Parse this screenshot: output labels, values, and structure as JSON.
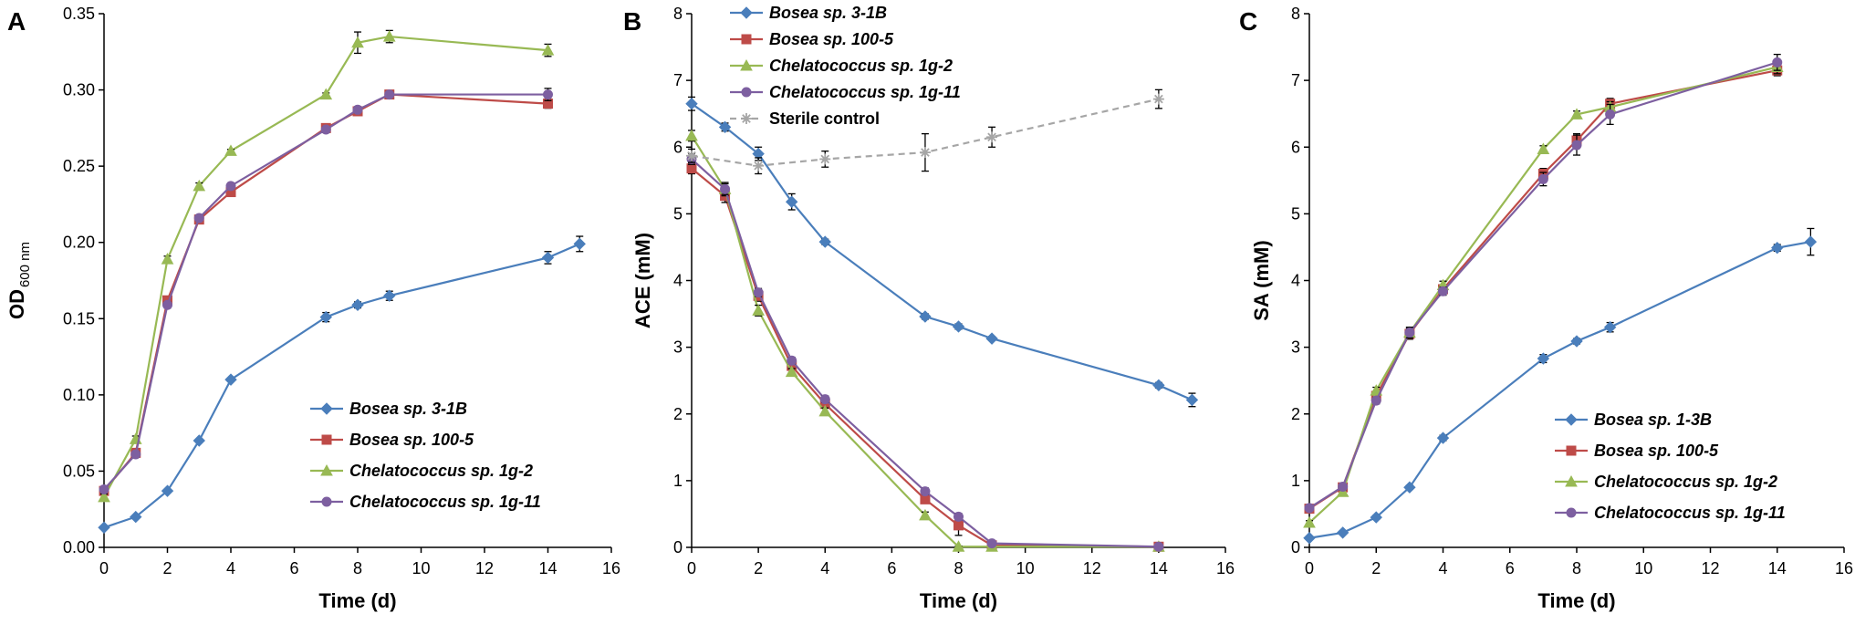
{
  "chart_data": [
    {
      "type": "line",
      "panel_label": "A",
      "ylabel_main": "OD",
      "ylabel_sub": "600 nm",
      "xlabel": "Time (d)",
      "xlim": [
        0,
        16
      ],
      "ylim": [
        0,
        0.35
      ],
      "xticks": [
        "0",
        "2",
        "4",
        "6",
        "8",
        "10",
        "12",
        "14",
        "16"
      ],
      "yticks": [
        "0.00",
        "0.05",
        "0.10",
        "0.15",
        "0.20",
        "0.25",
        "0.30",
        "0.35"
      ],
      "legend_position": "bottom-right",
      "series": [
        {
          "name": "Bosea sp. 3-1B",
          "color": "#4a7ebb",
          "marker": "diamond",
          "dashed": false,
          "x": [
            0,
            1,
            2,
            3,
            4,
            7,
            8,
            9,
            14,
            15
          ],
          "y": [
            0.013,
            0.02,
            0.037,
            0.07,
            0.11,
            0.151,
            0.159,
            0.165,
            0.19,
            0.199
          ],
          "err": [
            0.001,
            0.001,
            0.001,
            0.001,
            0.001,
            0.003,
            0.002,
            0.003,
            0.004,
            0.005
          ]
        },
        {
          "name": "Bosea sp. 100-5",
          "color": "#be4b48",
          "marker": "square",
          "dashed": false,
          "x": [
            0,
            1,
            2,
            3,
            4,
            7,
            8,
            9,
            14
          ],
          "y": [
            0.037,
            0.062,
            0.162,
            0.215,
            0.233,
            0.275,
            0.286,
            0.297,
            0.291
          ],
          "err": [
            0.002,
            0.002,
            0.002,
            0.002,
            0.002,
            0.002,
            0.002,
            0.002,
            0.003
          ]
        },
        {
          "name": "Chelatococcus sp. 1g-2",
          "color": "#98b954",
          "marker": "triangle",
          "dashed": false,
          "x": [
            0,
            1,
            2,
            3,
            4,
            7,
            8,
            9,
            14
          ],
          "y": [
            0.033,
            0.071,
            0.189,
            0.237,
            0.26,
            0.297,
            0.331,
            0.335,
            0.326
          ],
          "err": [
            0.002,
            0.002,
            0.002,
            0.002,
            0.001,
            0.001,
            0.007,
            0.004,
            0.004
          ]
        },
        {
          "name": "Chelatococcus sp. 1g-11",
          "color": "#7d5fa0",
          "marker": "circle",
          "dashed": false,
          "x": [
            0,
            1,
            2,
            3,
            4,
            7,
            8,
            9,
            14
          ],
          "y": [
            0.038,
            0.061,
            0.159,
            0.216,
            0.237,
            0.274,
            0.287,
            0.297,
            0.297
          ],
          "err": [
            0.002,
            0.002,
            0.002,
            0.002,
            0.002,
            0.002,
            0.002,
            0.002,
            0.004
          ]
        }
      ]
    },
    {
      "type": "line",
      "panel_label": "B",
      "ylabel_main": "ACE (mM)",
      "ylabel_sub": "",
      "xlabel": "Time (d)",
      "xlim": [
        0,
        16
      ],
      "ylim": [
        0,
        8
      ],
      "xticks": [
        "0",
        "2",
        "4",
        "6",
        "8",
        "10",
        "12",
        "14",
        "16"
      ],
      "yticks": [
        "0",
        "1",
        "2",
        "3",
        "4",
        "5",
        "6",
        "7",
        "8"
      ],
      "legend_position": "top",
      "series": [
        {
          "name": "Bosea sp. 3-1B",
          "color": "#4a7ebb",
          "marker": "diamond",
          "dashed": false,
          "x": [
            0,
            1,
            2,
            3,
            4,
            7,
            8,
            9,
            14,
            15
          ],
          "y": [
            6.65,
            6.3,
            5.9,
            5.18,
            4.58,
            3.46,
            3.31,
            3.13,
            2.43,
            2.21
          ],
          "err": [
            0.1,
            0.06,
            0.1,
            0.12,
            0.04,
            0.04,
            0.04,
            0.03,
            0.04,
            0.1
          ]
        },
        {
          "name": "Bosea sp. 100-5",
          "color": "#be4b48",
          "marker": "square",
          "dashed": false,
          "x": [
            0,
            1,
            2,
            3,
            4,
            7,
            8,
            9,
            14
          ],
          "y": [
            5.68,
            5.27,
            3.77,
            2.72,
            2.15,
            0.72,
            0.33,
            0.03,
            0.01
          ],
          "err": [
            0.08,
            0.1,
            0.08,
            0.06,
            0.05,
            0.06,
            0.15,
            0.02,
            0.01
          ]
        },
        {
          "name": "Chelatococcus sp. 1g-2",
          "color": "#98b954",
          "marker": "triangle",
          "dashed": false,
          "x": [
            0,
            1,
            2,
            3,
            4,
            7,
            8,
            9,
            14
          ],
          "y": [
            6.17,
            5.37,
            3.55,
            2.63,
            2.04,
            0.48,
            0.01,
            0.01,
            0.01
          ],
          "err": [
            0.08,
            0.1,
            0.08,
            0.05,
            0.05,
            0.05,
            0.01,
            0.01,
            0.01
          ]
        },
        {
          "name": "Chelatococcus sp. 1g-11",
          "color": "#7d5fa0",
          "marker": "circle",
          "dashed": false,
          "x": [
            0,
            1,
            2,
            3,
            4,
            7,
            8,
            9,
            14
          ],
          "y": [
            5.82,
            5.37,
            3.82,
            2.8,
            2.22,
            0.84,
            0.46,
            0.06,
            0.01
          ],
          "err": [
            0.08,
            0.08,
            0.06,
            0.05,
            0.05,
            0.05,
            0.05,
            0.02,
            0.01
          ]
        },
        {
          "name": "Sterile control",
          "color": "#a6a6a6",
          "marker": "asterisk",
          "dashed": true,
          "x": [
            0,
            2,
            4,
            7,
            9,
            14
          ],
          "y": [
            5.87,
            5.72,
            5.82,
            5.92,
            6.15,
            6.72
          ],
          "err": [
            0.1,
            0.12,
            0.12,
            0.28,
            0.15,
            0.14
          ]
        }
      ]
    },
    {
      "type": "line",
      "panel_label": "C",
      "ylabel_main": "SA (mM)",
      "ylabel_sub": "",
      "xlabel": "Time (d)",
      "xlim": [
        0,
        16
      ],
      "ylim": [
        0,
        8
      ],
      "xticks": [
        "0",
        "2",
        "4",
        "6",
        "8",
        "10",
        "12",
        "14",
        "16"
      ],
      "yticks": [
        "0",
        "1",
        "2",
        "3",
        "4",
        "5",
        "6",
        "7",
        "8"
      ],
      "legend_position": "bottom-right",
      "series": [
        {
          "name": "Bosea sp. 1-3B",
          "color": "#4a7ebb",
          "marker": "diamond",
          "dashed": false,
          "x": [
            0,
            1,
            2,
            3,
            4,
            7,
            8,
            9,
            14,
            15
          ],
          "y": [
            0.14,
            0.22,
            0.45,
            0.9,
            1.64,
            2.83,
            3.09,
            3.3,
            4.49,
            4.58
          ],
          "err": [
            0.02,
            0.02,
            0.03,
            0.03,
            0.04,
            0.06,
            0.04,
            0.07,
            0.05,
            0.2
          ]
        },
        {
          "name": "Bosea sp. 100-5",
          "color": "#be4b48",
          "marker": "square",
          "dashed": false,
          "x": [
            0,
            1,
            2,
            3,
            4,
            7,
            8,
            9,
            14
          ],
          "y": [
            0.58,
            0.9,
            2.27,
            3.2,
            3.87,
            5.6,
            6.1,
            6.65,
            7.15
          ],
          "err": [
            0.03,
            0.03,
            0.05,
            0.08,
            0.06,
            0.08,
            0.1,
            0.08,
            0.08
          ]
        },
        {
          "name": "Chelatococcus sp. 1g-2",
          "color": "#98b954",
          "marker": "triangle",
          "dashed": false,
          "x": [
            0,
            1,
            2,
            3,
            4,
            7,
            8,
            9,
            14
          ],
          "y": [
            0.37,
            0.83,
            2.35,
            3.22,
            3.93,
            5.97,
            6.49,
            6.6,
            7.2
          ],
          "err": [
            0.03,
            0.03,
            0.05,
            0.08,
            0.06,
            0.05,
            0.05,
            0.08,
            0.1
          ]
        },
        {
          "name": "Chelatococcus sp. 1g-11",
          "color": "#7d5fa0",
          "marker": "circle",
          "dashed": false,
          "x": [
            0,
            1,
            2,
            3,
            4,
            7,
            8,
            9,
            14
          ],
          "y": [
            0.59,
            0.91,
            2.2,
            3.22,
            3.84,
            5.52,
            6.03,
            6.49,
            7.27
          ],
          "err": [
            0.03,
            0.03,
            0.05,
            0.08,
            0.06,
            0.1,
            0.15,
            0.15,
            0.12
          ]
        }
      ]
    }
  ]
}
